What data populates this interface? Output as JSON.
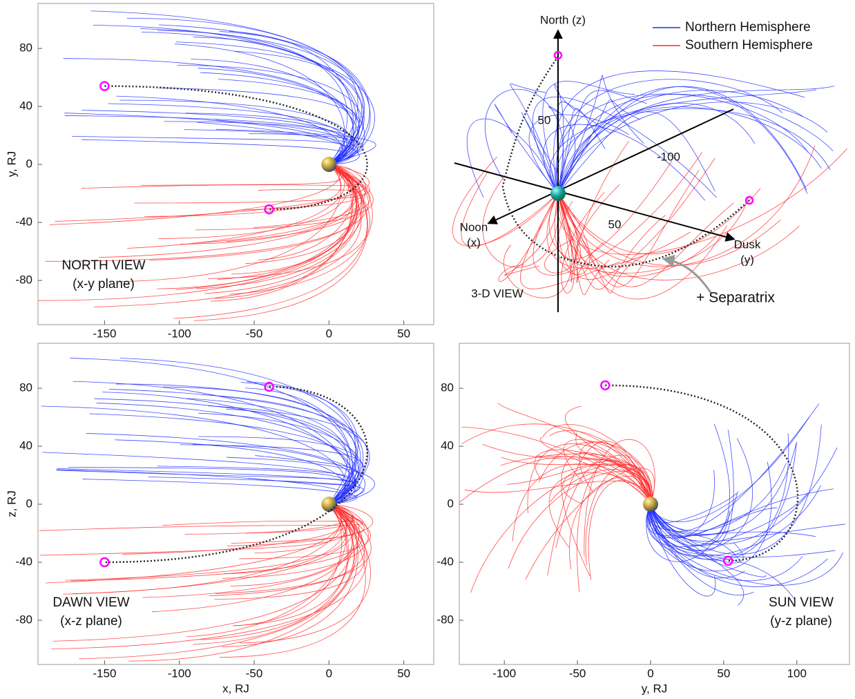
{
  "chart_data": [
    {
      "type": "scatter",
      "xlim": [
        -194.5,
        70
      ],
      "ylim": [
        -110.5,
        111
      ],
      "xticks": [
        -150,
        -100,
        -50,
        0,
        50
      ],
      "yticks": [
        -80,
        -40,
        0,
        40,
        80
      ],
      "ylabel": "y, RJ",
      "annotation": [
        "NORTH VIEW",
        "(x-y plane)"
      ],
      "x": [
        -150,
        -40
      ],
      "values": [
        54,
        -31
      ],
      "color": "#ff00ff"
    },
    {
      "type": "scatter",
      "xlim": [
        -194.5,
        70
      ],
      "ylim": [
        -110.5,
        111
      ],
      "xticks": [
        -150,
        -100,
        -50,
        0,
        50
      ],
      "yticks": [
        -80,
        -40,
        0,
        40,
        80
      ],
      "xlabel": "x, RJ",
      "ylabel": "z, RJ",
      "annotation": [
        "DAWN VIEW",
        "(x-z plane)"
      ],
      "x": [
        -40,
        -150
      ],
      "values": [
        81,
        -40
      ],
      "color": "#ff00ff"
    },
    {
      "type": "scatter",
      "xlim": [
        -130.8,
        136
      ],
      "ylim": [
        -110.5,
        111
      ],
      "xticks": [
        -100,
        -50,
        0,
        50,
        100
      ],
      "yticks": [
        -80,
        -40,
        0,
        40,
        80
      ],
      "xlabel": "y, RJ",
      "annotation": [
        "SUN VIEW",
        "(y-z plane)"
      ],
      "x": [
        -31,
        53
      ],
      "values": [
        82,
        -39
      ],
      "color": "#ff00ff"
    }
  ],
  "legend": [
    {
      "name": "Northern Hemisphere",
      "color": "#1f2bff"
    },
    {
      "name": "Southern Hemisphere",
      "color": "#ff2a2a"
    }
  ],
  "view_3d": {
    "title": "3-D VIEW",
    "z_axis": "North (z)",
    "x_axis": [
      "Noon",
      "(x)"
    ],
    "y_axis": [
      "Dusk",
      "(y)"
    ],
    "tick_labels": [
      "50",
      "-100",
      "50"
    ],
    "callout": "+ Separatrix"
  }
}
